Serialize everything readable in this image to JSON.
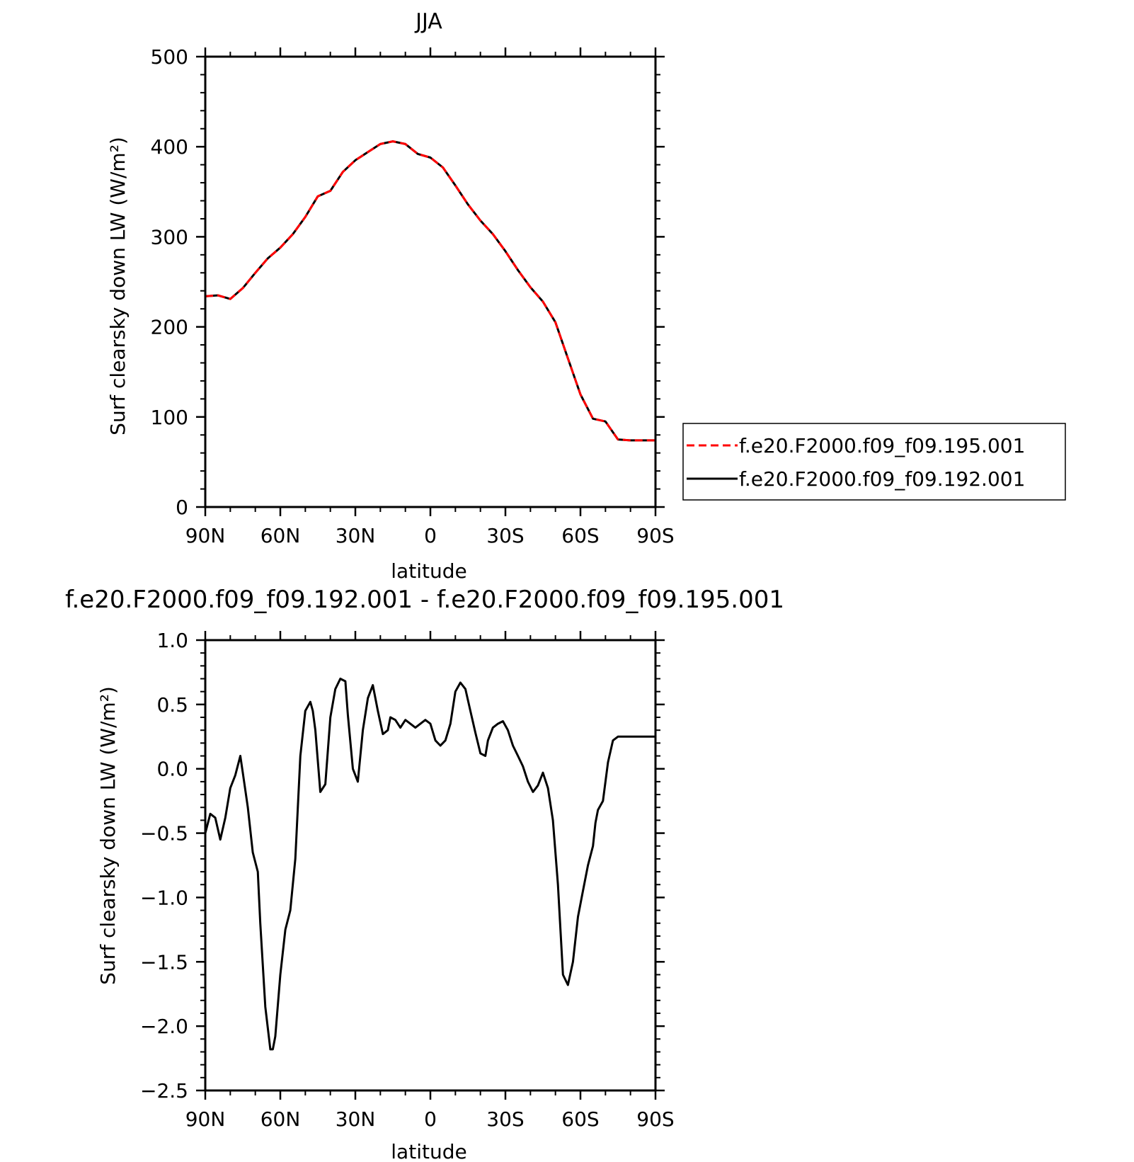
{
  "chart_data": [
    {
      "type": "line",
      "title": "JJA",
      "xlabel": "latitude",
      "ylabel": "Surf clearsky down LW (W/m²)",
      "xlim": [
        90,
        -90
      ],
      "ylim": [
        0,
        500
      ],
      "xticks": [
        {
          "value": 90,
          "label": "90N"
        },
        {
          "value": 60,
          "label": "60N"
        },
        {
          "value": 30,
          "label": "30N"
        },
        {
          "value": 0,
          "label": "0"
        },
        {
          "value": -30,
          "label": "30S"
        },
        {
          "value": -60,
          "label": "60S"
        },
        {
          "value": -90,
          "label": "90S"
        }
      ],
      "yticks": [
        {
          "value": 0,
          "label": "0"
        },
        {
          "value": 100,
          "label": "100"
        },
        {
          "value": 200,
          "label": "200"
        },
        {
          "value": 300,
          "label": "300"
        },
        {
          "value": 400,
          "label": "400"
        },
        {
          "value": 500,
          "label": "500"
        }
      ],
      "legend": {
        "position": "right",
        "entries": [
          {
            "label": "f.e20.F2000.f09_f09.195.001",
            "color": "#ff0000",
            "style": "dashed"
          },
          {
            "label": "f.e20.F2000.f09_f09.192.001",
            "color": "#000000",
            "style": "solid"
          }
        ]
      },
      "x": [
        90,
        85,
        80,
        75,
        70,
        65,
        60,
        55,
        50,
        45,
        40,
        35,
        30,
        25,
        20,
        15,
        10,
        5,
        0,
        -5,
        -10,
        -15,
        -20,
        -25,
        -30,
        -35,
        -40,
        -45,
        -50,
        -55,
        -60,
        -65,
        -70,
        -75,
        -80,
        -85,
        -90
      ],
      "series": [
        {
          "name": "f.e20.F2000.f09_f09.195.001",
          "color": "#ff0000",
          "style": "dashed",
          "values": [
            234,
            235,
            231,
            243,
            260,
            276,
            288,
            303,
            322,
            345,
            351,
            372,
            385,
            394,
            403,
            406,
            403,
            392,
            388,
            377,
            357,
            336,
            318,
            303,
            284,
            263,
            244,
            228,
            205,
            165,
            125,
            98,
            95,
            75,
            74,
            74,
            74
          ]
        },
        {
          "name": "f.e20.F2000.f09_f09.192.001",
          "color": "#000000",
          "style": "solid",
          "values": [
            234,
            235,
            231,
            243,
            260,
            276,
            288,
            303,
            322,
            345,
            351,
            372,
            385,
            394,
            403,
            406,
            403,
            392,
            388,
            377,
            357,
            336,
            318,
            303,
            284,
            263,
            244,
            228,
            205,
            165,
            125,
            98,
            95,
            75,
            74,
            74,
            74
          ]
        }
      ]
    },
    {
      "type": "line",
      "title": "f.e20.F2000.f09_f09.192.001 - f.e20.F2000.f09_f09.195.001",
      "xlabel": "latitude",
      "ylabel": "Surf clearsky down LW (W/m²)",
      "xlim": [
        90,
        -90
      ],
      "ylim": [
        -2.5,
        1.0
      ],
      "xticks": [
        {
          "value": 90,
          "label": "90N"
        },
        {
          "value": 60,
          "label": "60N"
        },
        {
          "value": 30,
          "label": "30N"
        },
        {
          "value": 0,
          "label": "0"
        },
        {
          "value": -30,
          "label": "30S"
        },
        {
          "value": -60,
          "label": "60S"
        },
        {
          "value": -90,
          "label": "90S"
        }
      ],
      "yticks": [
        {
          "value": -2.5,
          "label": "−2.5"
        },
        {
          "value": -2.0,
          "label": "−2.0"
        },
        {
          "value": -1.5,
          "label": "−1.5"
        },
        {
          "value": -1.0,
          "label": "−1.0"
        },
        {
          "value": -0.5,
          "label": "−0.5"
        },
        {
          "value": 0.0,
          "label": "0.0"
        },
        {
          "value": 0.5,
          "label": "0.5"
        },
        {
          "value": 1.0,
          "label": "1.0"
        }
      ],
      "x": [
        90,
        88,
        86,
        84,
        82,
        80,
        78,
        76,
        75,
        73,
        71,
        69,
        68,
        66,
        64,
        63,
        62,
        60,
        58,
        56,
        54,
        52,
        50,
        48,
        47,
        46,
        44,
        42,
        40,
        38,
        36,
        34,
        33,
        31,
        29,
        27,
        25,
        23,
        21,
        19,
        17,
        16,
        14,
        12,
        10,
        8,
        6,
        4,
        2,
        0,
        -2,
        -4,
        -6,
        -8,
        -10,
        -12,
        -14,
        -16,
        -18,
        -20,
        -22,
        -23,
        -25,
        -27,
        -29,
        -31,
        -33,
        -35,
        -37,
        -39,
        -41,
        -43,
        -45,
        -47,
        -49,
        -51,
        -53,
        -55,
        -57,
        -59,
        -61,
        -63,
        -65,
        -66,
        -67,
        -69,
        -71,
        -73,
        -75,
        -77,
        -79,
        -81,
        -83,
        -85,
        -87,
        -89,
        -90
      ],
      "series": [
        {
          "name": "",
          "color": "#000000",
          "style": "solid",
          "values": [
            -0.5,
            -0.35,
            -0.38,
            -0.55,
            -0.38,
            -0.15,
            -0.05,
            0.1,
            -0.03,
            -0.3,
            -0.65,
            -0.8,
            -1.2,
            -1.85,
            -2.18,
            -2.18,
            -2.08,
            -1.6,
            -1.25,
            -1.1,
            -0.7,
            0.1,
            0.45,
            0.52,
            0.45,
            0.3,
            -0.18,
            -0.12,
            0.4,
            0.62,
            0.7,
            0.68,
            0.42,
            0.0,
            -0.1,
            0.3,
            0.55,
            0.65,
            0.45,
            0.27,
            0.3,
            0.4,
            0.38,
            0.32,
            0.38,
            0.35,
            0.32,
            0.35,
            0.38,
            0.35,
            0.22,
            0.18,
            0.22,
            0.35,
            0.6,
            0.67,
            0.62,
            0.45,
            0.28,
            0.12,
            0.1,
            0.22,
            0.32,
            0.35,
            0.37,
            0.3,
            0.18,
            0.1,
            0.02,
            -0.1,
            -0.18,
            -0.13,
            -0.03,
            -0.15,
            -0.4,
            -0.9,
            -1.6,
            -1.68,
            -1.5,
            -1.15,
            -0.95,
            -0.75,
            -0.6,
            -0.42,
            -0.32,
            -0.25,
            0.05,
            0.22,
            0.25,
            0.25,
            0.25,
            0.25,
            0.25,
            0.25,
            0.25,
            0.25,
            0.25
          ]
        }
      ]
    }
  ]
}
